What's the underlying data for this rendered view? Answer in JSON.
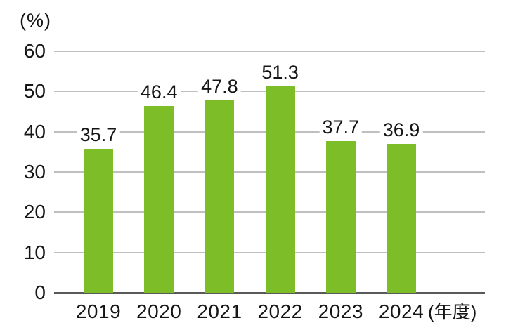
{
  "chart_data": {
    "type": "bar",
    "title": "",
    "unit_label": "(%)",
    "x_suffix_label": "(年度)",
    "categories": [
      "2019",
      "2020",
      "2021",
      "2022",
      "2023",
      "2024"
    ],
    "values": [
      35.7,
      46.4,
      47.8,
      51.3,
      37.7,
      36.9
    ],
    "value_labels": [
      "35.7",
      "46.4",
      "47.8",
      "51.3",
      "37.7",
      "36.9"
    ],
    "ylabel": "",
    "xlabel": "",
    "ylim": [
      0,
      60
    ],
    "yticks": [
      0,
      10,
      20,
      30,
      40,
      50,
      60
    ],
    "grid": true,
    "legend": false,
    "colors": {
      "bar": "#7dbe28",
      "gridline": "#bfbfbf",
      "axis": "#595959",
      "text": "#151515",
      "background": "#ffffff",
      "value_label_background": "#ffffff"
    }
  }
}
